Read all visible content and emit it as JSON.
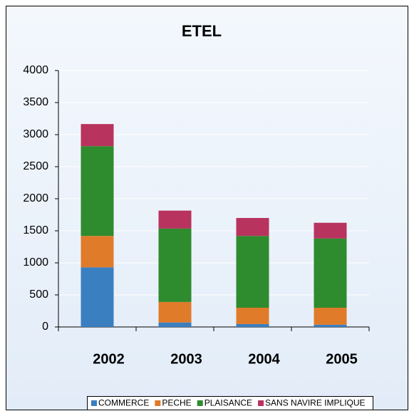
{
  "chart_data": {
    "type": "stacked_bar",
    "title": "ETEL",
    "categories": [
      "2002",
      "2003",
      "2004",
      "2005"
    ],
    "series": [
      {
        "name": "COMMERCE",
        "color": "#3a7fc0",
        "values": [
          930,
          70,
          45,
          35
        ]
      },
      {
        "name": "PECHE",
        "color": "#e07b2a",
        "values": [
          490,
          320,
          255,
          265
        ]
      },
      {
        "name": "PLAISANCE",
        "color": "#2e8b2e",
        "values": [
          1400,
          1145,
          1120,
          1080
        ]
      },
      {
        "name": "SANS NAVIRE IMPLIQUE",
        "color": "#b8335e",
        "values": [
          345,
          280,
          280,
          245
        ]
      }
    ],
    "ylim": [
      0,
      4000
    ],
    "yticks": [
      0,
      500,
      1000,
      1500,
      2000,
      2500,
      3000,
      3500,
      4000
    ],
    "grid": true,
    "legend": "bottom"
  }
}
